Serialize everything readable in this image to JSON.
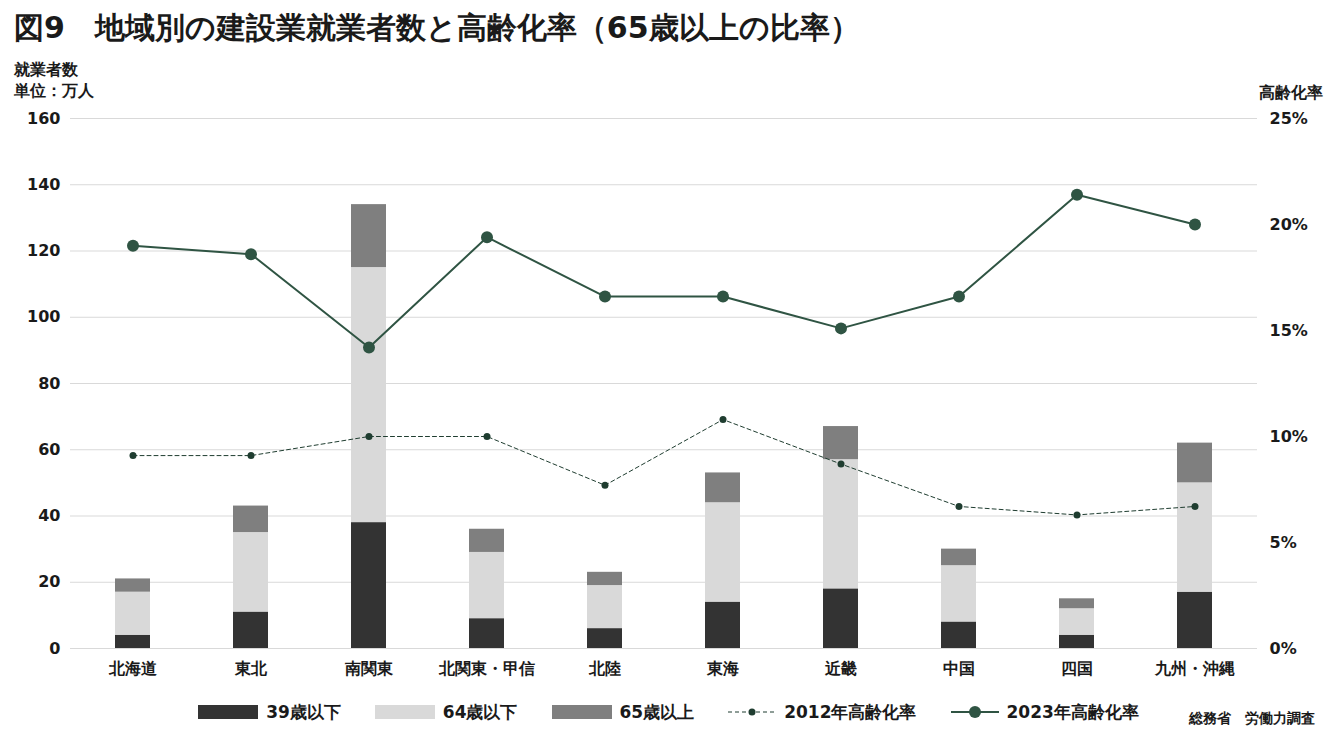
{
  "chart_data": {
    "type": "bar",
    "title": "図9　地域別の建設業就業者数と高齢化率（65歳以上の比率）",
    "y_label": "就業者数\n単位：万人",
    "y2_label": "高齢化率",
    "source": "総務省　労働力調査",
    "categories": [
      "北海道",
      "東北",
      "南関東",
      "北関東・甲信",
      "北陸",
      "東海",
      "近畿",
      "中国",
      "四国",
      "九州・沖縄"
    ],
    "stacked": true,
    "grid": true,
    "legend": "bottom",
    "ylim": [
      0,
      160
    ],
    "yticks": [
      0,
      20,
      40,
      60,
      80,
      100,
      120,
      140,
      160
    ],
    "y2lim": [
      0,
      25
    ],
    "y2ticks": [
      {
        "value": 0,
        "label": "0%"
      },
      {
        "value": 5,
        "label": "5%"
      },
      {
        "value": 10,
        "label": "10%"
      },
      {
        "value": 15,
        "label": "15%"
      },
      {
        "value": 20,
        "label": "20%"
      },
      {
        "value": 25,
        "label": "25%"
      }
    ],
    "series": [
      {
        "name": "39歳以下",
        "type": "bar",
        "color": "#333333",
        "values": [
          4,
          11,
          38,
          9,
          6,
          14,
          18,
          8,
          4,
          17
        ]
      },
      {
        "name": "64歳以下",
        "type": "bar",
        "color": "#d9d9d9",
        "values": [
          13,
          24,
          77,
          20,
          13,
          30,
          39,
          17,
          8,
          33
        ]
      },
      {
        "name": "65歳以上",
        "type": "bar",
        "color": "#7f7f7f",
        "values": [
          4,
          8,
          19,
          7,
          4,
          9,
          10,
          5,
          3,
          12
        ]
      },
      {
        "name": "2012年高齢化率",
        "type": "line",
        "axis": "y2",
        "color": "#1f3d30",
        "line_style": "dashed",
        "marker": "circle",
        "values": [
          9.1,
          9.1,
          10.0,
          10.0,
          7.7,
          10.8,
          8.7,
          6.7,
          6.3,
          6.7
        ]
      },
      {
        "name": "2023年高齢化率",
        "type": "line",
        "axis": "y2",
        "color": "#2f5443",
        "line_style": "solid",
        "marker": "circle",
        "values": [
          19.0,
          18.6,
          14.2,
          19.4,
          16.6,
          16.6,
          15.1,
          16.6,
          21.4,
          20.0
        ]
      }
    ]
  }
}
